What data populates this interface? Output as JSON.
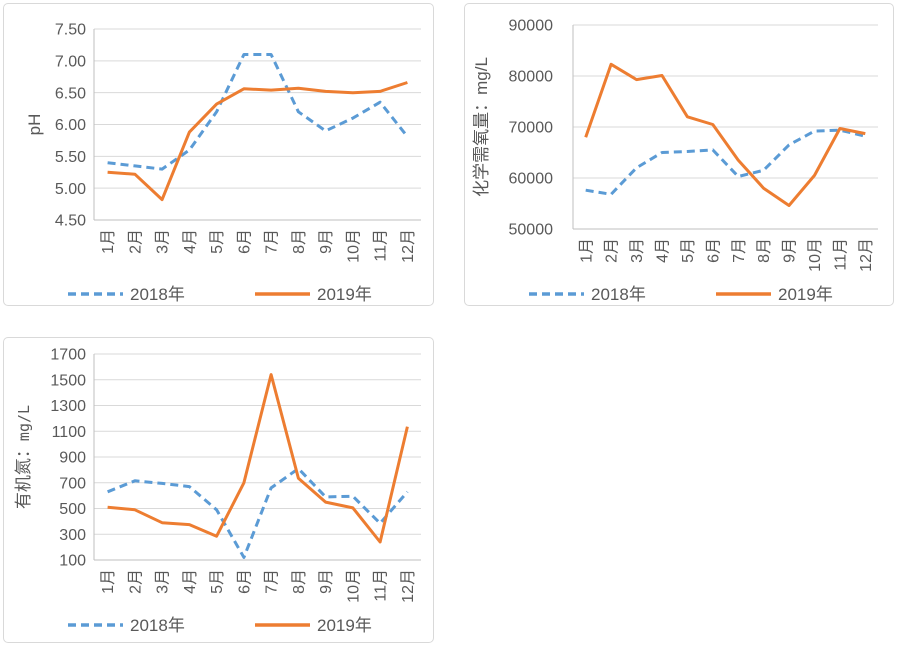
{
  "colors": {
    "series_2018": "#5B9BD5",
    "series_2019": "#ED7D31",
    "gridline": "#D9D9D9",
    "axis_line": "#BFBFBF",
    "text": "#595959",
    "panel_border": "#D9D9D9",
    "background": "#FFFFFF"
  },
  "legend": {
    "labels": [
      "2018年",
      "2019年"
    ]
  },
  "chart_data": [
    {
      "type": "line",
      "position": "top-left",
      "title": "",
      "xlabel": "",
      "ylabel": "pH",
      "ylabel_mono_latin": false,
      "ylim": [
        4.5,
        7.5
      ],
      "ystep": 0.5,
      "y_decimals": 2,
      "grid": true,
      "legend_position": "bottom",
      "categories": [
        "1月",
        "2月",
        "3月",
        "4月",
        "5月",
        "6月",
        "7月",
        "8月",
        "9月",
        "10月",
        "11月",
        "12月"
      ],
      "series": [
        {
          "name": "2018年",
          "style": "dashed",
          "color": "#5B9BD5",
          "values": [
            5.4,
            5.35,
            5.3,
            5.6,
            6.2,
            7.1,
            7.1,
            6.2,
            5.9,
            6.1,
            6.35,
            5.81
          ]
        },
        {
          "name": "2019年",
          "style": "solid",
          "color": "#ED7D31",
          "values": [
            5.25,
            5.22,
            4.82,
            5.88,
            6.32,
            6.56,
            6.54,
            6.57,
            6.52,
            6.5,
            6.52,
            6.66
          ]
        }
      ]
    },
    {
      "type": "line",
      "position": "top-right",
      "title": "",
      "xlabel": "",
      "ylabel": "化学需氧量：mg/L",
      "ylabel_mono_latin": false,
      "ylim": [
        50000,
        90000
      ],
      "ystep": 10000,
      "y_decimals": 0,
      "grid": true,
      "legend_position": "bottom",
      "categories": [
        "1月",
        "2月",
        "3月",
        "4月",
        "5月",
        "6月",
        "7月",
        "8月",
        "9月",
        "10月",
        "11月",
        "12月"
      ],
      "series": [
        {
          "name": "2018年",
          "style": "dashed",
          "color": "#5B9BD5",
          "values": [
            57600,
            56800,
            62000,
            65000,
            65200,
            65500,
            60300,
            61500,
            66500,
            69200,
            69400,
            68200
          ]
        },
        {
          "name": "2019年",
          "style": "solid",
          "color": "#ED7D31",
          "values": [
            68000,
            82300,
            79300,
            80100,
            72000,
            70500,
            63500,
            58000,
            54600,
            60500,
            69700,
            68700
          ]
        }
      ]
    },
    {
      "type": "line",
      "position": "bottom-left",
      "title": "",
      "xlabel": "",
      "ylabel": "有机氮：mg/L",
      "ylabel_mono_latin": true,
      "ylim": [
        100,
        1700
      ],
      "ystep": 200,
      "y_decimals": 0,
      "grid": true,
      "legend_position": "bottom",
      "categories": [
        "1月",
        "2月",
        "3月",
        "4月",
        "5月",
        "6月",
        "7月",
        "8月",
        "9月",
        "10月",
        "11月",
        "12月"
      ],
      "series": [
        {
          "name": "2018年",
          "style": "dashed",
          "color": "#5B9BD5",
          "values": [
            630,
            715,
            695,
            670,
            490,
            120,
            660,
            810,
            590,
            595,
            385,
            630
          ]
        },
        {
          "name": "2019年",
          "style": "solid",
          "color": "#ED7D31",
          "values": [
            510,
            490,
            390,
            375,
            285,
            700,
            1540,
            735,
            550,
            505,
            240,
            1135
          ]
        }
      ]
    }
  ]
}
